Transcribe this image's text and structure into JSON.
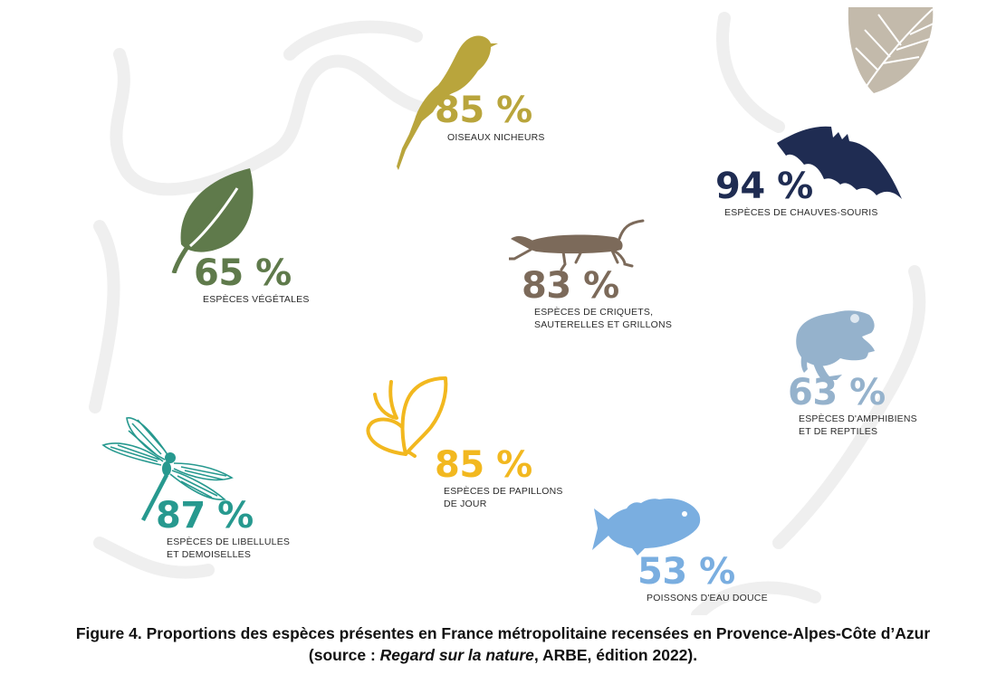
{
  "colors": {
    "bird": "#b9a53c",
    "bat": "#1f2c52",
    "leaf": "#5f7a4b",
    "cricket": "#7c6a5a",
    "frog": "#95b2cc",
    "butterfly": "#f2b81f",
    "dragonfly": "#27998f",
    "fish": "#7aaee0",
    "leaf_deco": "#bfb7a8",
    "bg_lines": "#ededed"
  },
  "stats": {
    "birds": {
      "value": "85 %",
      "label_lines": [
        "OISEAUX NICHEURS"
      ],
      "icon": "bird-icon"
    },
    "bats": {
      "value": "94 %",
      "label_lines": [
        "ESPÈCES DE CHAUVES-SOURIS"
      ],
      "icon": "bat-icon"
    },
    "plants": {
      "value": "65 %",
      "label_lines": [
        "ESPÈCES VÉGÉTALES"
      ],
      "icon": "leaf-icon"
    },
    "crickets": {
      "value": "83 %",
      "label_lines": [
        "ESPÈCES DE CRIQUETS,",
        "SAUTERELLES ET GRILLONS"
      ],
      "icon": "cricket-icon"
    },
    "amphibians": {
      "value": "63 %",
      "label_lines": [
        "ESPÈCES D'AMPHIBIENS",
        "ET DE REPTILES"
      ],
      "icon": "frog-icon"
    },
    "butterflies": {
      "value": "85 %",
      "label_lines": [
        "ESPÈCES DE PAPILLONS",
        "DE JOUR"
      ],
      "icon": "butterfly-icon"
    },
    "dragonflies": {
      "value": "87 %",
      "label_lines": [
        "ESPÈCES DE LIBELLULES",
        "ET DEMOISELLES"
      ],
      "icon": "dragonfly-icon"
    },
    "fish": {
      "value": "53 %",
      "label_lines": [
        "POISSONS D'EAU DOUCE"
      ],
      "icon": "fish-icon"
    }
  },
  "caption": {
    "line1": "Figure 4. Proportions des espèces présentes en France métropolitaine recensées en Provence-Alpes-Côte d’Azur",
    "line2_prefix": "(source : ",
    "line2_italic": "Regard sur la nature",
    "line2_suffix": ", ARBE, édition 2022)."
  }
}
